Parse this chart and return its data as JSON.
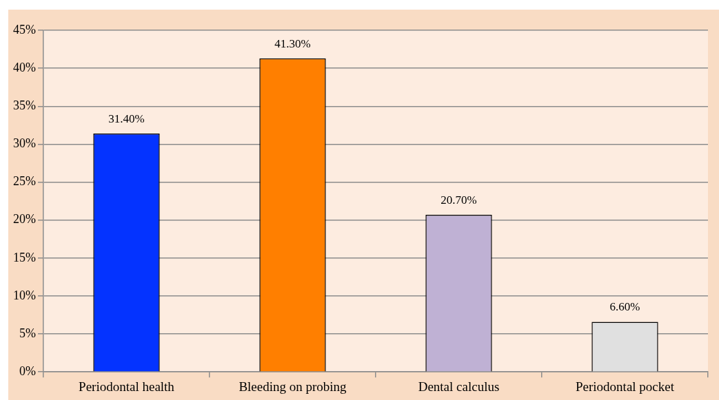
{
  "chart_data": {
    "type": "bar",
    "categories": [
      "Periodontal health",
      "Bleeding on probing",
      "Dental calculus",
      "Periodontal pocket"
    ],
    "values": [
      31.4,
      41.3,
      20.7,
      6.6
    ],
    "colors": [
      "#0433ff",
      "#ff7f00",
      "#bfb1d4",
      "#e0e0e0"
    ],
    "value_labels": [
      "31.40%",
      "41.30%",
      "20.70%",
      "6.60%"
    ],
    "ylim": [
      0,
      45
    ],
    "yticks": [
      {
        "value": 0,
        "label": "0%"
      },
      {
        "value": 5,
        "label": "5%"
      },
      {
        "value": 10,
        "label": "10%"
      },
      {
        "value": 15,
        "label": "15%"
      },
      {
        "value": 20,
        "label": "20%"
      },
      {
        "value": 25,
        "label": "25%"
      },
      {
        "value": 30,
        "label": "30%"
      },
      {
        "value": 35,
        "label": "35%"
      },
      {
        "value": 40,
        "label": "40%"
      },
      {
        "value": 45,
        "label": "45%"
      }
    ],
    "grid": "y",
    "legend": false
  }
}
